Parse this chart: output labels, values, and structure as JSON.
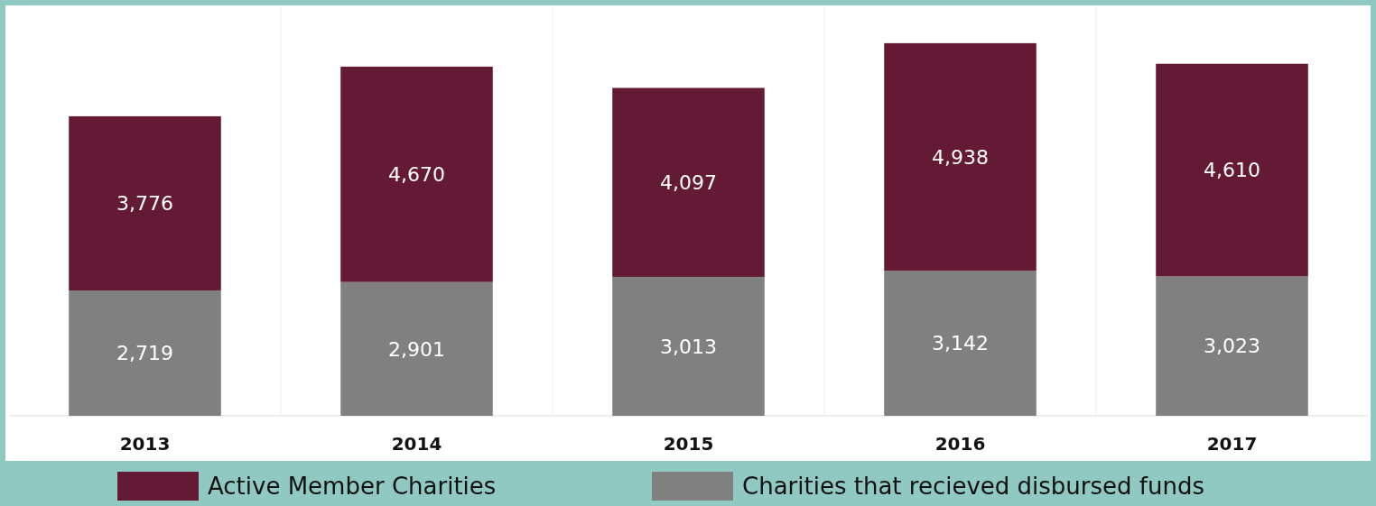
{
  "chart_data": {
    "type": "bar",
    "stacked": true,
    "relative": false,
    "legend": "bottom",
    "categories": [
      "2013",
      "2014",
      "2015",
      "2016",
      "2017"
    ],
    "series": [
      {
        "name": "Charities that recieved disbursed funds",
        "color": "#808080",
        "values": [
          2719,
          2901,
          3013,
          3142,
          3023
        ],
        "value_labels": [
          "2,719",
          "2,901",
          "3,013",
          "3,142",
          "3,023"
        ]
      },
      {
        "name": "Active Member Charities",
        "color": "#641a35",
        "values": [
          3776,
          4670,
          4097,
          4938,
          4610
        ],
        "value_labels": [
          "3,776",
          "4,670",
          "4,097",
          "4,938",
          "4,610"
        ]
      }
    ]
  }
}
